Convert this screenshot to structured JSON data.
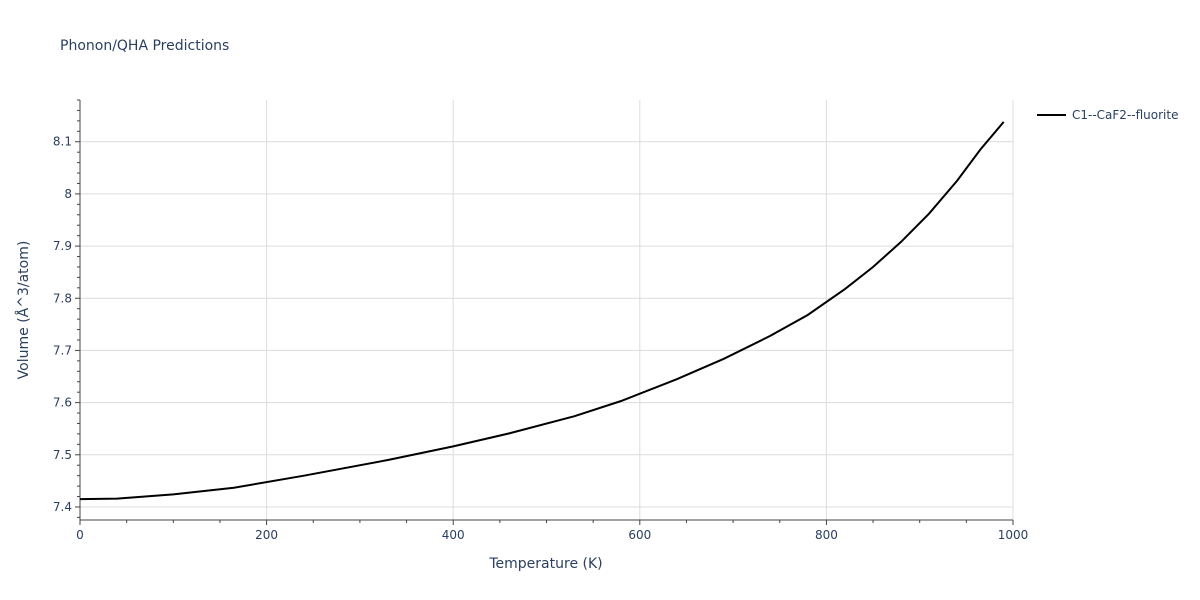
{
  "chart_data": {
    "type": "line",
    "title": "Phonon/QHA Predictions",
    "xlabel": "Temperature (K)",
    "ylabel": "Volume (Å^3/atom)",
    "xlim": [
      0,
      1000
    ],
    "ylim": [
      7.375,
      8.18
    ],
    "xticks": [
      0,
      200,
      400,
      600,
      800,
      1000
    ],
    "xtick_labels": [
      "0",
      "200",
      "400",
      "600",
      "800",
      "1000"
    ],
    "yticks": [
      7.4,
      7.5,
      7.6,
      7.7,
      7.8,
      7.9,
      8.0,
      8.1
    ],
    "ytick_labels": [
      "7.4",
      "7.5",
      "7.6",
      "7.7",
      "7.8",
      "7.9",
      "8",
      "8.1"
    ],
    "grid": true,
    "legend_position": "top-right",
    "series": [
      {
        "name": "C1--CaF2--fluorite",
        "color": "#000000",
        "x": [
          0,
          40,
          100,
          165,
          240,
          330,
          400,
          460,
          530,
          580,
          640,
          690,
          740,
          780,
          820,
          850,
          880,
          910,
          940,
          965,
          990
        ],
        "y": [
          7.415,
          7.416,
          7.424,
          7.437,
          7.46,
          7.49,
          7.516,
          7.541,
          7.574,
          7.603,
          7.645,
          7.684,
          7.728,
          7.768,
          7.818,
          7.86,
          7.908,
          7.962,
          8.025,
          8.085,
          8.138
        ]
      }
    ]
  }
}
